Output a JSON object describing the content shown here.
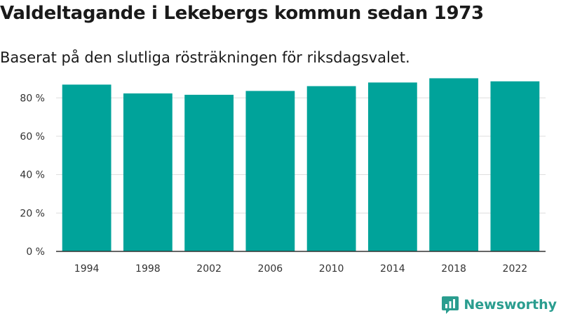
{
  "header": {
    "title": "Valdeltagande i Lekebergs kommun sedan 1973",
    "subtitle": "Baserat på den slutliga rösträkningen för riksdagsvalet."
  },
  "brand": {
    "name": "Newsworthy",
    "color": "#2a9d8f"
  },
  "chart_data": {
    "type": "bar",
    "categories": [
      "1994",
      "1998",
      "2002",
      "2006",
      "2010",
      "2014",
      "2018",
      "2022"
    ],
    "values": [
      86.9,
      82.3,
      81.6,
      83.6,
      86.1,
      88.0,
      90.2,
      88.6
    ],
    "ylim": [
      0,
      90
    ],
    "yticks": [
      0,
      20,
      40,
      60,
      80
    ],
    "ytick_labels": [
      "0 %",
      "20 %",
      "40 %",
      "60 %",
      "80 %"
    ],
    "grid": true,
    "bar_color": "#00a39a"
  }
}
